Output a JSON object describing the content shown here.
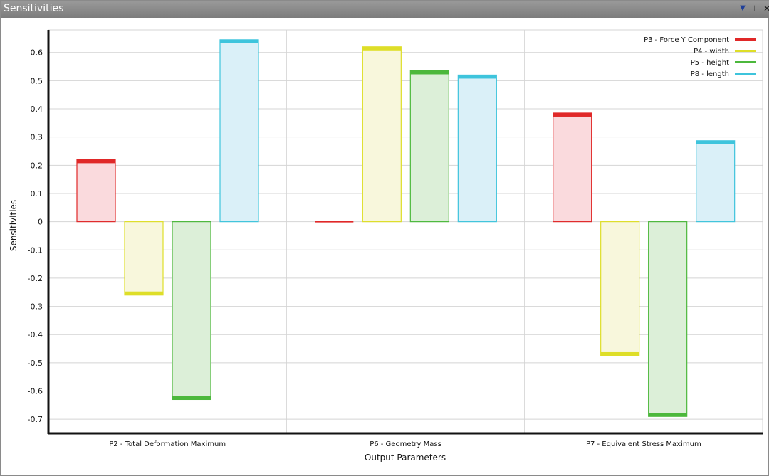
{
  "window": {
    "title": "Sensitivities",
    "menu_glyph": "▼",
    "pin_glyph": "⊥",
    "close_glyph": "✕"
  },
  "chart_data": {
    "type": "bar",
    "title": "",
    "xlabel": "Output Parameters",
    "ylabel": "Sensitivities",
    "ylim": [
      -0.75,
      0.68
    ],
    "yticks": [
      0.6,
      0.5,
      0.4,
      0.3,
      0.2,
      0.1,
      0,
      -0.1,
      -0.2,
      -0.3,
      -0.4,
      -0.5,
      -0.6,
      -0.7
    ],
    "ytick_labels": [
      "0.6",
      "0.5",
      "0.4",
      "0.3",
      "0.2",
      "0.1",
      "0",
      "-0.1",
      "-0.2",
      "-0.3",
      "-0.4",
      "-0.5",
      "-0.6",
      "-0.7"
    ],
    "grid": true,
    "legend_position": "top-right",
    "categories": [
      "P2 - Total Deformation Maximum",
      "P6 - Geometry Mass",
      "P7 - Equivalent Stress Maximum"
    ],
    "series": [
      {
        "name": "P3 - Force Y Component",
        "values": [
          0.22,
          0.0,
          0.385
        ],
        "color": "#e02828",
        "fill": "#fadadd"
      },
      {
        "name": "P4 - width",
        "values": [
          -0.26,
          0.62,
          -0.475
        ],
        "color": "#dede28",
        "fill": "#f8f7dc"
      },
      {
        "name": "P5 - height",
        "values": [
          -0.63,
          0.535,
          -0.69
        ],
        "color": "#4cb83c",
        "fill": "#dcefd8"
      },
      {
        "name": "P8 - length",
        "values": [
          0.645,
          0.52,
          0.287
        ],
        "color": "#3ec4dc",
        "fill": "#daf0f8"
      }
    ]
  }
}
